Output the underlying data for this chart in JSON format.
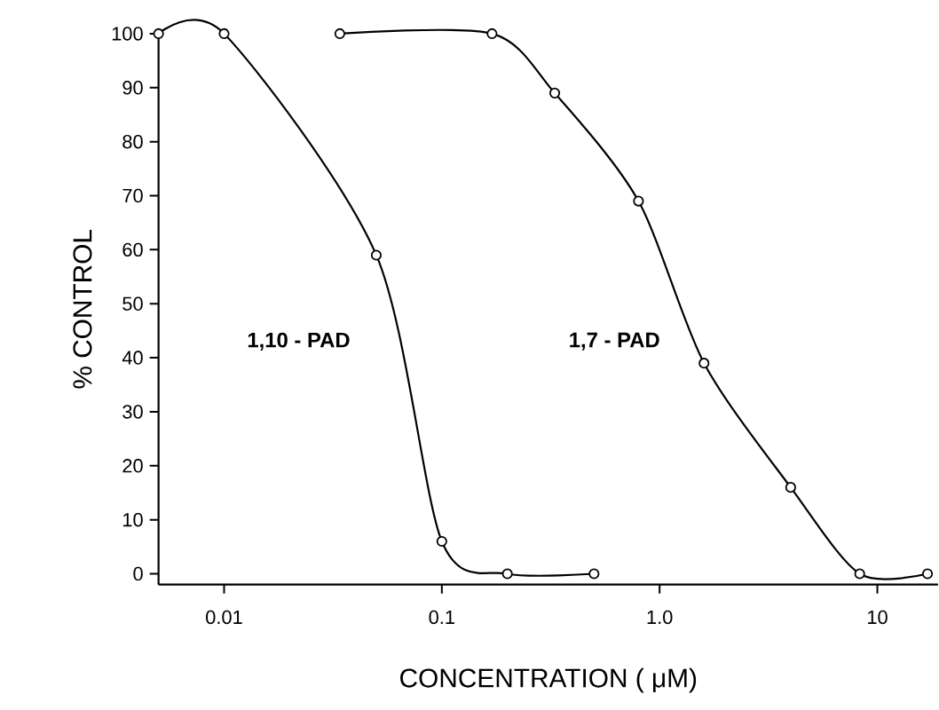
{
  "chart_data": {
    "type": "line",
    "xlabel": "CONCENTRATION ( μM)",
    "ylabel": "% CONTROL",
    "log": "x",
    "marker": "circle",
    "line_style": "solid",
    "xlim": [
      0.005,
      19
    ],
    "ylim": [
      -2,
      100
    ],
    "xticks": [
      0.01,
      0.1,
      {
        "value": 1,
        "label": "1.0"
      },
      10
    ],
    "yticks": [
      0,
      10,
      20,
      30,
      40,
      50,
      60,
      70,
      80,
      90,
      100
    ],
    "series": [
      {
        "name": "1,10 - PAD",
        "color": "#000000",
        "x": [
          0.005,
          0.01,
          0.05,
          0.1,
          0.2,
          0.5
        ],
        "values": [
          100,
          100,
          59,
          6,
          0,
          0
        ]
      },
      {
        "name": "1,7 - PAD",
        "color": "#000000",
        "x": [
          0.034,
          0.17,
          0.33,
          0.8,
          1.6,
          4,
          8.3,
          17
        ],
        "values": [
          100,
          100,
          89,
          69,
          39,
          16,
          0,
          0
        ]
      }
    ]
  }
}
